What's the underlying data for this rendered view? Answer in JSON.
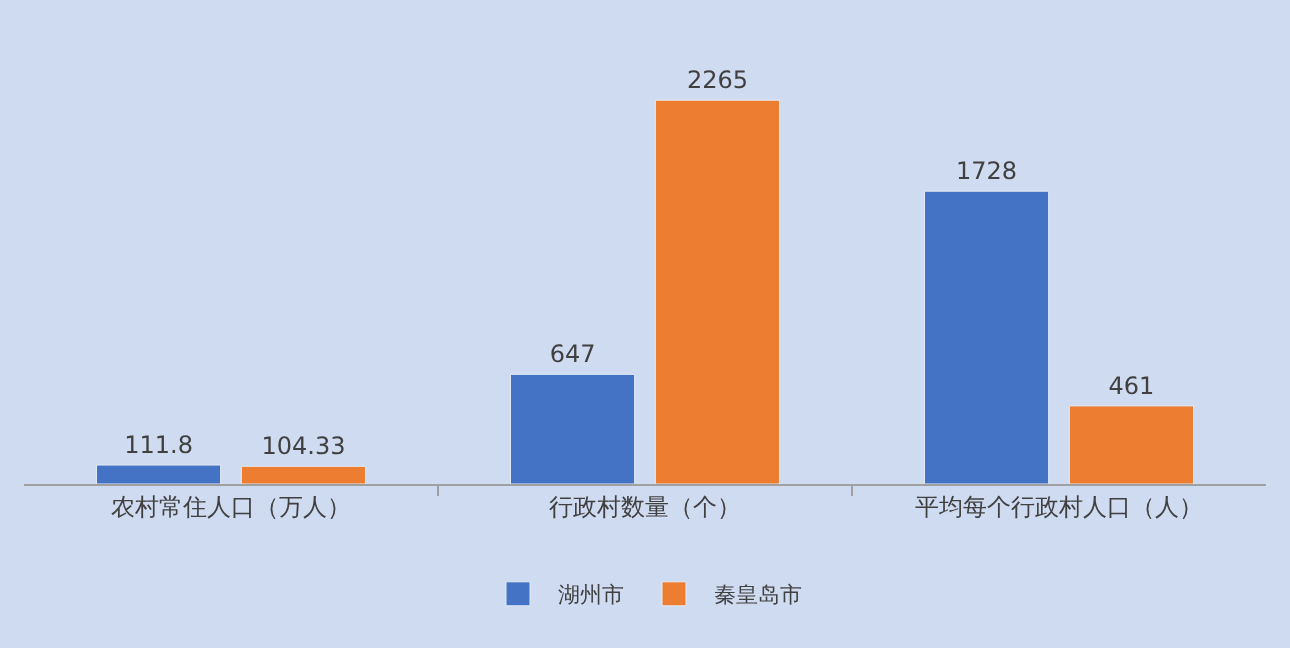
{
  "chart_data": {
    "type": "bar",
    "categories": [
      "农村常住人口（万人）",
      "行政村数量（个）",
      "平均每个行政村人口（人）"
    ],
    "series": [
      {
        "name": "湖州市",
        "color": "#4472c4",
        "values": [
          111.8,
          647,
          1728
        ]
      },
      {
        "name": "秦皇岛市",
        "color": "#ed7d31",
        "values": [
          104.33,
          2265,
          461
        ]
      }
    ],
    "data_labels": true,
    "legend": "bottom",
    "grid": false
  }
}
